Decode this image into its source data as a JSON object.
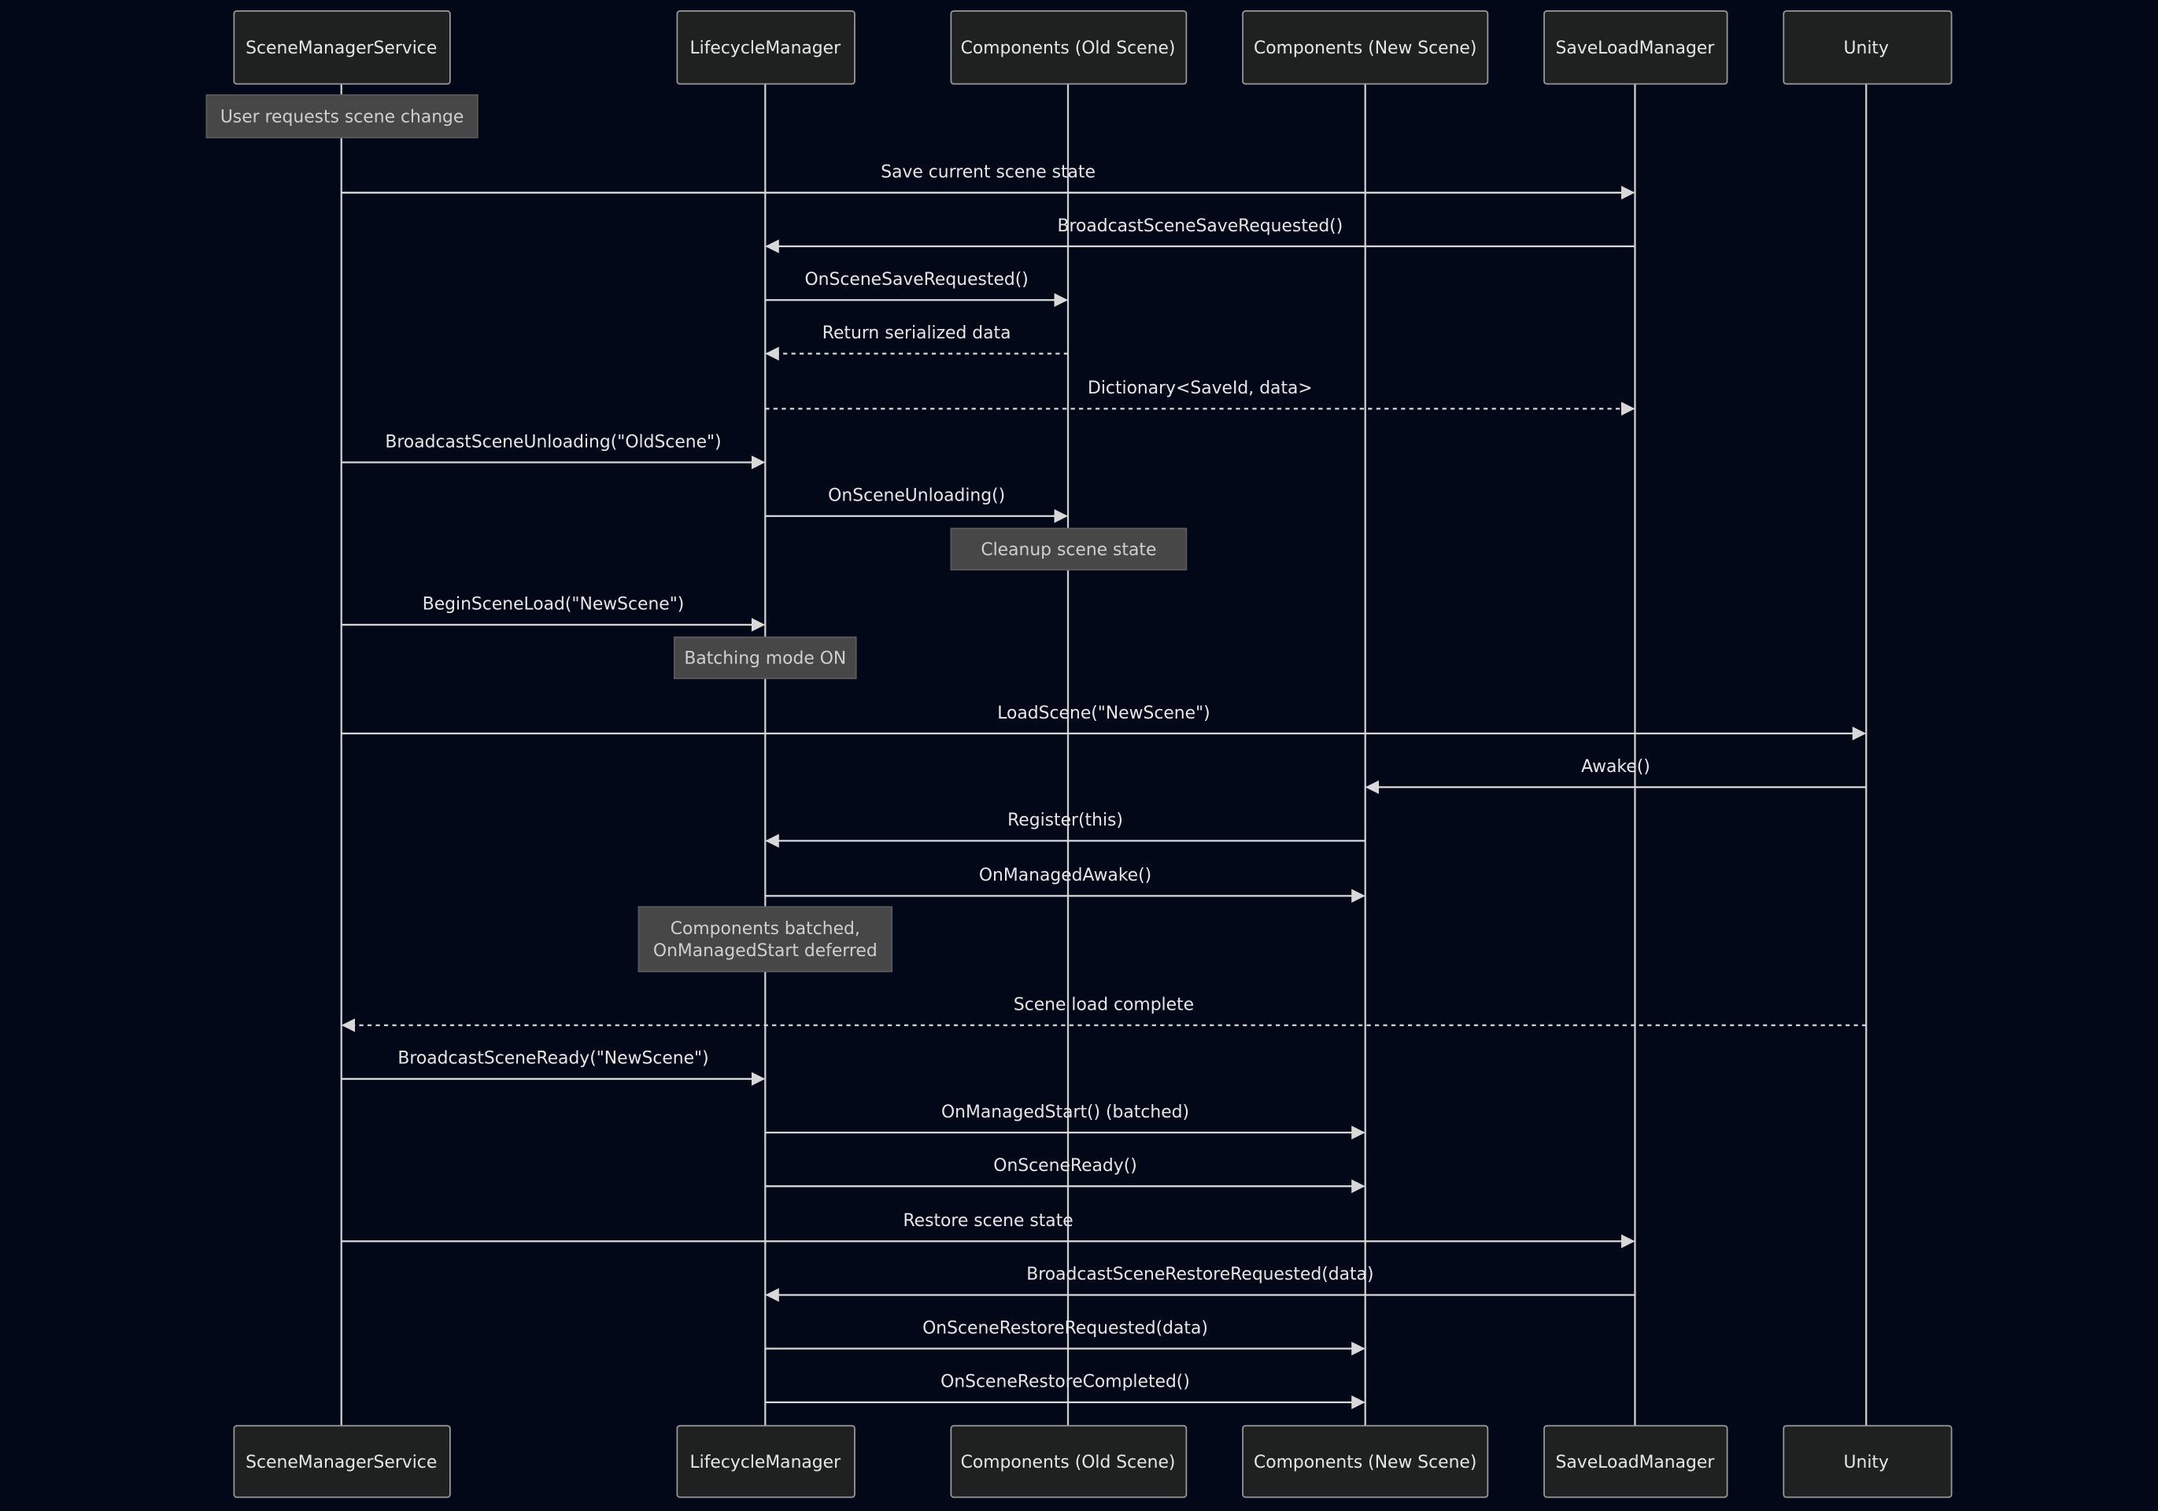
{
  "diagram_type": "sequence",
  "colors": {
    "background": "#020817",
    "actor_fill": "#1f2020",
    "note_fill": "#474747",
    "line": "#d8d8d8",
    "text": "#e6e6e6"
  },
  "participants": [
    {
      "id": "S",
      "label": "SceneManagerService"
    },
    {
      "id": "L",
      "label": "LifecycleManager"
    },
    {
      "id": "O",
      "label": "Components (Old Scene)"
    },
    {
      "id": "N",
      "label": "Components (New Scene)"
    },
    {
      "id": "SL",
      "label": "SaveLoadManager"
    },
    {
      "id": "U",
      "label": "Unity"
    }
  ],
  "steps": [
    {
      "kind": "note",
      "over": [
        "S"
      ],
      "text": [
        "User requests scene change"
      ]
    },
    {
      "kind": "message",
      "from": "S",
      "to": "SL",
      "style": "solid",
      "text": "Save current scene state"
    },
    {
      "kind": "message",
      "from": "SL",
      "to": "L",
      "style": "solid",
      "text": "BroadcastSceneSaveRequested()"
    },
    {
      "kind": "message",
      "from": "L",
      "to": "O",
      "style": "solid",
      "text": "OnSceneSaveRequested()"
    },
    {
      "kind": "message",
      "from": "O",
      "to": "L",
      "style": "dashed",
      "text": "Return serialized data"
    },
    {
      "kind": "message",
      "from": "L",
      "to": "SL",
      "style": "dashed",
      "text": "Dictionary<SaveId, data>"
    },
    {
      "kind": "message",
      "from": "S",
      "to": "L",
      "style": "solid",
      "text": "BroadcastSceneUnloading(\"OldScene\")"
    },
    {
      "kind": "message",
      "from": "L",
      "to": "O",
      "style": "solid",
      "text": "OnSceneUnloading()"
    },
    {
      "kind": "note",
      "over": [
        "O"
      ],
      "text": [
        "Cleanup scene state"
      ]
    },
    {
      "kind": "message",
      "from": "S",
      "to": "L",
      "style": "solid",
      "text": "BeginSceneLoad(\"NewScene\")"
    },
    {
      "kind": "note",
      "over": [
        "L"
      ],
      "text": [
        "Batching mode ON"
      ]
    },
    {
      "kind": "message",
      "from": "S",
      "to": "U",
      "style": "solid",
      "text": "LoadScene(\"NewScene\")"
    },
    {
      "kind": "message",
      "from": "U",
      "to": "N",
      "style": "solid",
      "text": "Awake()"
    },
    {
      "kind": "message",
      "from": "N",
      "to": "L",
      "style": "solid",
      "text": "Register(this)"
    },
    {
      "kind": "message",
      "from": "L",
      "to": "N",
      "style": "solid",
      "text": "OnManagedAwake()"
    },
    {
      "kind": "note",
      "over": [
        "L"
      ],
      "text": [
        "Components batched,",
        "OnManagedStart deferred"
      ]
    },
    {
      "kind": "message",
      "from": "U",
      "to": "S",
      "style": "dashed",
      "text": "Scene load complete"
    },
    {
      "kind": "message",
      "from": "S",
      "to": "L",
      "style": "solid",
      "text": "BroadcastSceneReady(\"NewScene\")"
    },
    {
      "kind": "message",
      "from": "L",
      "to": "N",
      "style": "solid",
      "text": "OnManagedStart() (batched)"
    },
    {
      "kind": "message",
      "from": "L",
      "to": "N",
      "style": "solid",
      "text": "OnSceneReady()"
    },
    {
      "kind": "message",
      "from": "S",
      "to": "SL",
      "style": "solid",
      "text": "Restore scene state"
    },
    {
      "kind": "message",
      "from": "SL",
      "to": "L",
      "style": "solid",
      "text": "BroadcastSceneRestoreRequested(data)"
    },
    {
      "kind": "message",
      "from": "L",
      "to": "N",
      "style": "solid",
      "text": "OnSceneRestoreRequested(data)"
    },
    {
      "kind": "message",
      "from": "L",
      "to": "N",
      "style": "solid",
      "text": "OnSceneRestoreCompleted()"
    }
  ]
}
